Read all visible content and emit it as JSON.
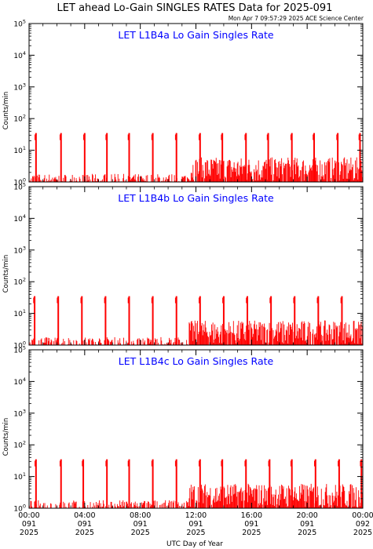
{
  "title": "LET ahead Lo-Gain SINGLES RATES Data for 2025-091",
  "timestamp": "Mon Apr  7 09:57:29 2025 ACE Science Center",
  "xlabel": "UTC Day of Year",
  "colors": {
    "data": "#ff0000",
    "panel_title": "#0000ff",
    "axes": "#000000"
  },
  "x_ticks": [
    {
      "hour": 0,
      "time": "00:00",
      "doy": "091",
      "year": "2025"
    },
    {
      "hour": 4,
      "time": "04:00",
      "doy": "091",
      "year": "2025"
    },
    {
      "hour": 8,
      "time": "08:00",
      "doy": "091",
      "year": "2025"
    },
    {
      "hour": 12,
      "time": "12:00",
      "doy": "091",
      "year": "2025"
    },
    {
      "hour": 16,
      "time": "16:00",
      "doy": "091",
      "year": "2025"
    },
    {
      "hour": 20,
      "time": "20:00",
      "doy": "091",
      "year": "2025"
    },
    {
      "hour": 24,
      "time": "00:00",
      "doy": "092",
      "year": "2025"
    }
  ],
  "chart_data": [
    {
      "type": "line",
      "title": "LET L1B4a Lo Gain Singles Rate",
      "ylabel": "Counts/min",
      "yscale": "log",
      "ylim": [
        1,
        100000
      ],
      "xlim": [
        0,
        24
      ],
      "y_ticks": [
        1,
        10,
        100,
        1000,
        10000,
        100000
      ],
      "spike_hours": [
        0.5,
        2.3,
        4.0,
        5.6,
        7.2,
        8.9,
        10.6,
        12.3,
        13.9,
        15.6,
        17.2,
        18.9,
        20.5,
        22.2,
        23.8
      ],
      "spike_peak": 35,
      "baseline_before_hour": 11.5,
      "baseline_low": [
        1,
        1.8
      ],
      "baseline_high": [
        1,
        6
      ]
    },
    {
      "type": "line",
      "title": "LET L1B4b Lo Gain Singles Rate",
      "ylabel": "Counts/min",
      "yscale": "log",
      "ylim": [
        1,
        100000
      ],
      "xlim": [
        0,
        24
      ],
      "y_ticks": [
        1,
        10,
        100,
        1000,
        10000,
        100000
      ],
      "spike_hours": [
        0.4,
        2.1,
        3.8,
        5.5,
        7.2,
        8.9,
        10.6,
        12.3,
        14.0,
        15.7,
        17.4,
        19.1,
        20.8,
        22.5
      ],
      "spike_peak": 35,
      "baseline_before_hour": 11.5,
      "baseline_low": [
        1,
        1.8
      ],
      "baseline_high": [
        1,
        6
      ]
    },
    {
      "type": "line",
      "title": "LET L1B4c Lo Gain Singles Rate",
      "ylabel": "Counts/min",
      "yscale": "log",
      "ylim": [
        1,
        100000
      ],
      "xlim": [
        0,
        24
      ],
      "y_ticks": [
        1,
        10,
        100,
        1000,
        10000,
        100000
      ],
      "spike_hours": [
        0.5,
        2.3,
        3.9,
        5.6,
        7.2,
        8.9,
        10.6,
        12.3,
        13.9,
        15.6,
        17.3,
        18.9,
        20.6,
        22.3,
        23.9
      ],
      "spike_peak": 35,
      "baseline_before_hour": 11.5,
      "baseline_low": [
        1,
        1.8
      ],
      "baseline_high": [
        1,
        6
      ]
    }
  ]
}
